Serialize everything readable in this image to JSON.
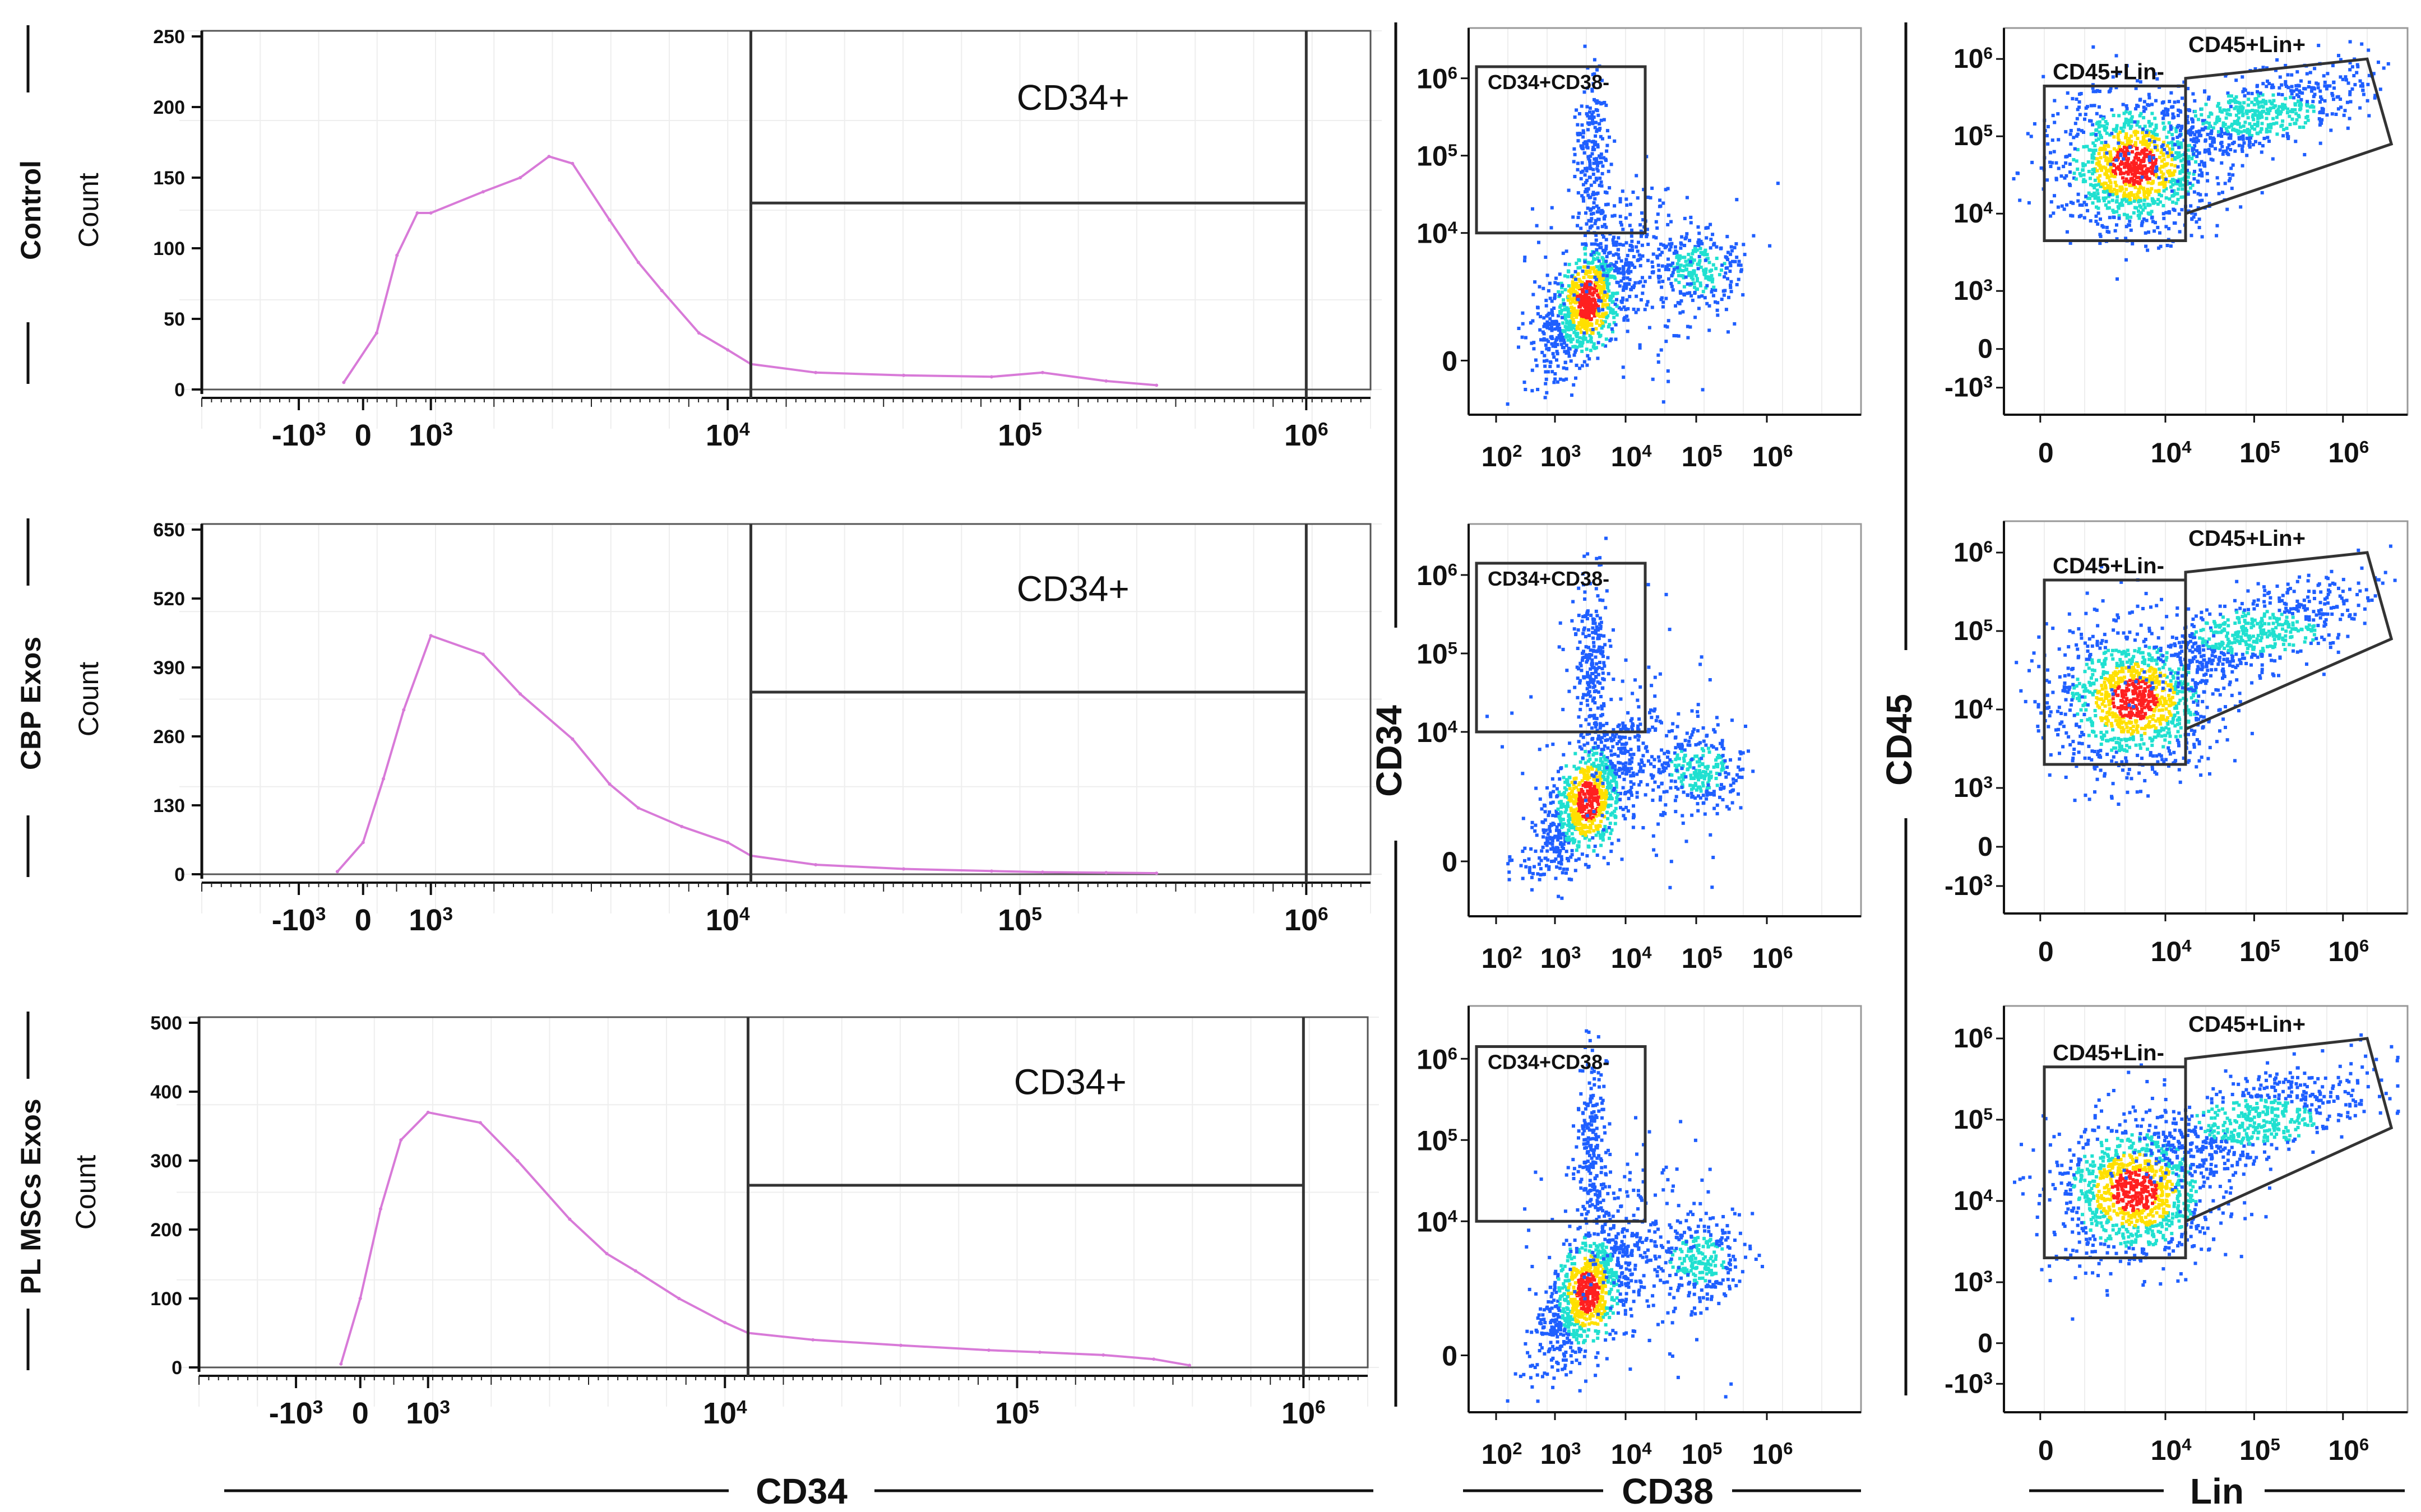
{
  "rows": [
    {
      "row_label": "Control",
      "histogram": {
        "ylabel": "Count",
        "yticks": [
          "250",
          "200",
          "150",
          "100",
          "50",
          "0"
        ],
        "ymax": 250,
        "gate_label": "CD34+"
      },
      "cd34_plot": {
        "gate_label": "CD34+CD38-"
      },
      "cd45_plot": {
        "gate_lin_neg": "CD45+Lin-",
        "gate_lin_pos": "CD45+Lin+"
      }
    },
    {
      "row_label": "CBP Exos",
      "histogram": {
        "ylabel": "Count",
        "yticks": [
          "650",
          "520",
          "390",
          "260",
          "130",
          "0"
        ],
        "ymax": 650,
        "gate_label": "CD34+"
      },
      "cd34_plot": {
        "gate_label": "CD34+CD38-"
      },
      "cd45_plot": {
        "gate_lin_neg": "CD45+Lin-",
        "gate_lin_pos": "CD45+Lin+"
      }
    },
    {
      "row_label": "PL MSCs Exos",
      "histogram": {
        "ylabel": "Count",
        "yticks": [
          "500",
          "400",
          "300",
          "200",
          "100",
          "0"
        ],
        "ymax": 500,
        "gate_label": "CD34+"
      },
      "cd34_plot": {
        "gate_label": "CD34+CD38-"
      },
      "cd45_plot": {
        "gate_lin_neg": "CD45+Lin-",
        "gate_lin_pos": "CD45+Lin+"
      }
    }
  ],
  "axis_titles": {
    "histogram_x": "CD34",
    "cd38_x": "CD38",
    "cd34_y": "CD34",
    "cd45_y": "CD45",
    "lin_x": "Lin"
  },
  "hist_xticks": [
    "-10^3",
    "0",
    "10^3",
    "10^4",
    "10^5",
    "10^6"
  ],
  "cd38_xticks": [
    "10^2",
    "10^3",
    "10^4",
    "10^5",
    "10^6"
  ],
  "cd34_yticks": [
    "10^6",
    "10^5",
    "10^4",
    "0"
  ],
  "lin_xticks": [
    "0",
    "10^4",
    "10^5",
    "10^6"
  ],
  "cd45_yticks": [
    "10^6",
    "10^5",
    "10^4",
    "10^3",
    "0",
    "-10^3"
  ],
  "colors": {
    "histogram_line": "#d87ad8",
    "gate": "#333333",
    "density_low": "#1f5fff",
    "density_mid": "#20e0d0",
    "density_high": "#ffe000",
    "density_peak": "#ff2020"
  },
  "chart_data": [
    {
      "type": "line",
      "title": "Control",
      "xlabel": "CD34",
      "ylabel": "Count",
      "x_scale": "biexponential",
      "ylim": [
        0,
        250
      ],
      "x": [
        -300,
        200,
        500,
        800,
        1000,
        1500,
        2000,
        2500,
        3000,
        4000,
        5000,
        6000,
        8000,
        10000,
        12000,
        20000,
        40000,
        80000,
        120000,
        200000,
        300000
      ],
      "series": [
        {
          "values": [
            5,
            40,
            95,
            125,
            125,
            140,
            150,
            165,
            160,
            120,
            90,
            70,
            40,
            28,
            18,
            12,
            10,
            9,
            12,
            6,
            3
          ]
        }
      ],
      "gate": {
        "label": "CD34+",
        "range": [
          12000,
          1000000
        ]
      }
    },
    {
      "type": "line",
      "title": "CBP Exos",
      "xlabel": "CD34",
      "ylabel": "Count",
      "x_scale": "biexponential",
      "ylim": [
        0,
        650
      ],
      "x": [
        -400,
        0,
        300,
        600,
        1000,
        1500,
        2000,
        3000,
        4000,
        5000,
        7000,
        10000,
        12000,
        20000,
        40000,
        80000,
        120000,
        200000,
        300000
      ],
      "series": [
        {
          "values": [
            5,
            60,
            180,
            310,
            450,
            415,
            340,
            255,
            170,
            125,
            90,
            60,
            35,
            18,
            10,
            6,
            4,
            3,
            2
          ]
        }
      ],
      "gate": {
        "label": "CD34+",
        "range": [
          12000,
          1000000
        ]
      }
    },
    {
      "type": "line",
      "title": "PL MSCs Exos",
      "xlabel": "CD34",
      "ylabel": "Count",
      "x_scale": "biexponential",
      "ylim": [
        0,
        500
      ],
      "x": [
        -300,
        0,
        300,
        600,
        1000,
        1500,
        2000,
        3000,
        4000,
        5000,
        7000,
        10000,
        12000,
        20000,
        40000,
        80000,
        120000,
        200000,
        300000,
        400000
      ],
      "series": [
        {
          "values": [
            5,
            100,
            230,
            330,
            370,
            355,
            300,
            215,
            165,
            140,
            100,
            65,
            50,
            40,
            32,
            25,
            22,
            18,
            12,
            3
          ]
        }
      ],
      "gate": {
        "label": "CD34+",
        "range": [
          12000,
          1000000
        ]
      }
    },
    {
      "type": "scatter",
      "title": "Control",
      "xlabel": "CD38",
      "ylabel": "CD34",
      "clusters": [
        {
          "x": 5000,
          "y": 3000
        },
        {
          "x": 5000,
          "y": 300000
        },
        {
          "x": 60000,
          "y": 6000
        }
      ],
      "gates": [
        {
          "label": "CD34+CD38-"
        }
      ]
    },
    {
      "type": "scatter",
      "title": "CBP Exos",
      "xlabel": "CD38",
      "ylabel": "CD34",
      "clusters": [
        {
          "x": 5000,
          "y": 3000
        },
        {
          "x": 5000,
          "y": 300000
        },
        {
          "x": 60000,
          "y": 6000
        }
      ],
      "gates": [
        {
          "label": "CD34+CD38-"
        }
      ]
    },
    {
      "type": "scatter",
      "title": "PL MSCs Exos",
      "xlabel": "CD38",
      "ylabel": "CD34",
      "clusters": [
        {
          "x": 5000,
          "y": 3000
        },
        {
          "x": 5000,
          "y": 300000
        },
        {
          "x": 60000,
          "y": 6000
        }
      ],
      "gates": [
        {
          "label": "CD34+CD38-"
        }
      ]
    },
    {
      "type": "scatter",
      "title": "Control",
      "xlabel": "Lin",
      "ylabel": "CD45",
      "clusters": [
        {
          "x": 5000,
          "y": 70000
        },
        {
          "x": 100000,
          "y": 300000
        }
      ],
      "gates": [
        {
          "label": "CD45+Lin-"
        },
        {
          "label": "CD45+Lin+"
        }
      ]
    },
    {
      "type": "scatter",
      "title": "CBP Exos",
      "xlabel": "Lin",
      "ylabel": "CD45",
      "clusters": [
        {
          "x": 3000,
          "y": 30000
        },
        {
          "x": 100000,
          "y": 250000
        }
      ],
      "gates": [
        {
          "label": "CD45+Lin-"
        },
        {
          "label": "CD45+Lin+"
        }
      ]
    },
    {
      "type": "scatter",
      "title": "PL MSCs Exos",
      "xlabel": "Lin",
      "ylabel": "CD45",
      "clusters": [
        {
          "x": 3000,
          "y": 40000
        },
        {
          "x": 100000,
          "y": 350000
        }
      ],
      "gates": [
        {
          "label": "CD45+Lin-"
        },
        {
          "label": "CD45+Lin+"
        }
      ]
    }
  ]
}
